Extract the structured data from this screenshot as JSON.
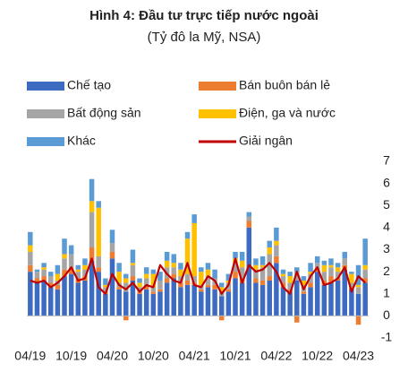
{
  "chart_data": {
    "type": "bar",
    "stacked": true,
    "title": "Hình 4: Đầu tư trực tiếp nước ngoài",
    "subtitle": "(Tỷ đô la Mỹ, NSA)",
    "categories": [
      "04/19",
      null,
      null,
      null,
      null,
      null,
      "10/19",
      null,
      null,
      null,
      null,
      null,
      "04/20",
      null,
      null,
      null,
      null,
      null,
      "10/20",
      null,
      null,
      null,
      null,
      null,
      "04/21",
      null,
      null,
      null,
      null,
      null,
      "10/21",
      null,
      null,
      null,
      null,
      null,
      "04/22",
      null,
      null,
      null,
      null,
      null,
      "10/22",
      null,
      null,
      null,
      null,
      null,
      "04/23",
      null
    ],
    "series": [
      {
        "name": "Chế tạo",
        "color": "#3d6bc2",
        "values": [
          2.0,
          1.5,
          1.6,
          1.3,
          1.2,
          1.8,
          1.9,
          1.5,
          1.6,
          2.5,
          2.0,
          1.0,
          2.6,
          1.2,
          1.1,
          1.6,
          1.0,
          1.2,
          1.0,
          1.1,
          1.5,
          1.7,
          1.3,
          1.4,
          1.4,
          1.1,
          1.3,
          1.2,
          0.9,
          1.1,
          1.7,
          1.5,
          4.0,
          1.5,
          1.4,
          1.6,
          2.4,
          1.3,
          1.1,
          1.6,
          1.0,
          1.3,
          2.0,
          1.4,
          1.5,
          1.6,
          2.1,
          1.2,
          1.0,
          1.5
        ]
      },
      {
        "name": "Bán buôn bán lẻ",
        "color": "#ed7d31",
        "values": [
          0.3,
          0.2,
          0.2,
          0.2,
          0.2,
          0.3,
          0.3,
          0.2,
          0.2,
          0.6,
          0.2,
          0.1,
          0.3,
          0.1,
          -0.2,
          0.2,
          0.1,
          0.2,
          0.1,
          0.1,
          0.2,
          0.2,
          0.2,
          0.2,
          0.1,
          0.1,
          0.1,
          0.2,
          -0.2,
          0.1,
          0.3,
          0.2,
          0.3,
          0.2,
          0.2,
          0.2,
          0.3,
          0.2,
          0.1,
          -0.3,
          0.1,
          0.2,
          0.1,
          0.2,
          0.3,
          0.1,
          0.2,
          0.1,
          -0.4,
          0.2
        ]
      },
      {
        "name": "Bất động sản",
        "color": "#a5a5a5",
        "values": [
          0.6,
          0.3,
          0.3,
          0.3,
          0.2,
          0.5,
          0.6,
          0.3,
          0.3,
          1.6,
          0.5,
          0.2,
          0.4,
          0.2,
          0.4,
          0.5,
          0.2,
          0.3,
          0.2,
          0.4,
          0.5,
          0.3,
          0.3,
          0.3,
          0.3,
          0.2,
          0.4,
          0.3,
          0.2,
          0.3,
          0.4,
          0.5,
          0.2,
          0.4,
          0.6,
          1.0,
          0.5,
          0.3,
          0.3,
          0.4,
          0.3,
          0.4,
          0.3,
          0.4,
          0.4,
          0.3,
          0.3,
          0.2,
          0.3,
          0.4
        ]
      },
      {
        "name": "Điện, ga và nước",
        "color": "#ffc000",
        "values": [
          0.3,
          0.0,
          0.1,
          0.0,
          0.3,
          0.2,
          0.0,
          0.1,
          0.2,
          0.5,
          2.2,
          0.1,
          0.0,
          0.5,
          0.2,
          0.1,
          0.2,
          0.2,
          0.6,
          0.0,
          0.3,
          0.2,
          0.3,
          1.6,
          2.4,
          0.6,
          0.3,
          0.0,
          0.2,
          0.1,
          0.2,
          0.3,
          0.0,
          0.2,
          0.1,
          0.3,
          0.2,
          0.1,
          0.3,
          0.0,
          0.2,
          0.1,
          0.0,
          0.3,
          0.1,
          0.2,
          0.0,
          0.4,
          0.1,
          0.2
        ]
      },
      {
        "name": "Khác",
        "color": "#5b9bd5",
        "values": [
          0.6,
          0.1,
          0.2,
          0.2,
          0.4,
          0.7,
          0.4,
          0.2,
          0.3,
          1.0,
          0.3,
          0.3,
          0.6,
          0.4,
          0.2,
          0.6,
          0.2,
          0.3,
          0.2,
          0.4,
          0.4,
          0.4,
          0.3,
          0.3,
          0.4,
          0.2,
          0.3,
          0.4,
          0.2,
          0.3,
          0.3,
          0.4,
          0.2,
          0.3,
          0.4,
          0.3,
          0.6,
          0.2,
          0.2,
          0.2,
          0.2,
          0.4,
          0.3,
          0.2,
          0.3,
          0.2,
          0.3,
          0.1,
          0.9,
          1.2
        ]
      },
      {
        "name": "Giải ngân",
        "color": "#c00000",
        "type": "line",
        "values": [
          1.6,
          1.5,
          1.6,
          1.3,
          1.5,
          1.8,
          2.2,
          1.6,
          1.7,
          2.6,
          1.3,
          1.0,
          1.9,
          1.4,
          1.2,
          1.5,
          1.1,
          1.4,
          1.3,
          2.3,
          1.9,
          1.6,
          1.5,
          2.4,
          1.4,
          1.3,
          1.8,
          1.6,
          1.0,
          1.4,
          2.6,
          1.5,
          2.3,
          2.0,
          2.1,
          2.4,
          2.0,
          1.3,
          1.0,
          2.0,
          1.2,
          1.8,
          2.2,
          1.4,
          1.5,
          1.7,
          2.2,
          1.1,
          1.8,
          1.5
        ]
      }
    ],
    "ylim": [
      -1,
      7
    ],
    "yticks": [
      -1,
      0,
      1,
      2,
      3,
      4,
      5,
      6,
      7
    ],
    "grid": false
  }
}
